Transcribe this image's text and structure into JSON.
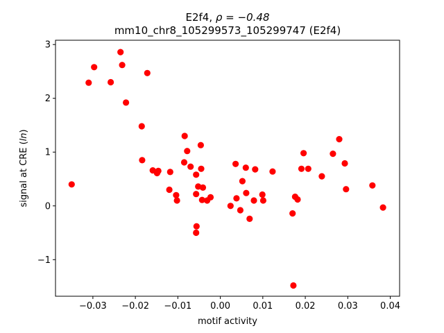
{
  "chart_data": {
    "type": "scatter",
    "title_line1_prefix": "E2f4, ",
    "title_line1_rho": "ρ = −0.48",
    "title_line2": "mm10_chr8_105299573_105299747 (E2f4)",
    "xlabel": "motif activity",
    "ylabel_prefix": "signal at CRE (",
    "ylabel_italic": "ln",
    "ylabel_suffix": ")",
    "xlim": [
      -0.0388,
      0.0422
    ],
    "ylim": [
      -1.68,
      3.08
    ],
    "x_ticks": [
      {
        "value": -0.03,
        "label": "−0.03"
      },
      {
        "value": -0.02,
        "label": "−0.02"
      },
      {
        "value": -0.01,
        "label": "−0.01"
      },
      {
        "value": 0.0,
        "label": "0.00"
      },
      {
        "value": 0.01,
        "label": "0.01"
      },
      {
        "value": 0.02,
        "label": "0.02"
      },
      {
        "value": 0.03,
        "label": "0.03"
      },
      {
        "value": 0.04,
        "label": "0.04"
      }
    ],
    "y_ticks": [
      {
        "value": -1,
        "label": "−1"
      },
      {
        "value": 0,
        "label": "0"
      },
      {
        "value": 1,
        "label": "1"
      },
      {
        "value": 2,
        "label": "2"
      },
      {
        "value": 3,
        "label": "3"
      }
    ],
    "grid": false,
    "marker_color": "#ff0000",
    "points": [
      [
        -0.035,
        0.4
      ],
      [
        -0.031,
        2.29
      ],
      [
        -0.0297,
        2.58
      ],
      [
        -0.0258,
        2.3
      ],
      [
        -0.0235,
        2.86
      ],
      [
        -0.0231,
        2.62
      ],
      [
        -0.0222,
        1.92
      ],
      [
        -0.0185,
        1.48
      ],
      [
        -0.0184,
        0.85
      ],
      [
        -0.0172,
        2.47
      ],
      [
        -0.0159,
        0.66
      ],
      [
        -0.0149,
        0.61
      ],
      [
        -0.0146,
        0.65
      ],
      [
        -0.012,
        0.3
      ],
      [
        -0.0118,
        0.63
      ],
      [
        -0.0104,
        0.2
      ],
      [
        -0.0102,
        0.1
      ],
      [
        -0.0085,
        0.81
      ],
      [
        -0.0084,
        1.3
      ],
      [
        -0.0078,
        1.02
      ],
      [
        -0.007,
        0.73
      ],
      [
        -0.0057,
        0.58
      ],
      [
        -0.0057,
        0.22
      ],
      [
        -0.0056,
        -0.38
      ],
      [
        -0.0057,
        -0.5
      ],
      [
        -0.0052,
        0.36
      ],
      [
        -0.0046,
        1.13
      ],
      [
        -0.0045,
        0.69
      ],
      [
        -0.0043,
        0.11
      ],
      [
        -0.0041,
        0.34
      ],
      [
        -0.0031,
        0.1
      ],
      [
        -0.0023,
        0.16
      ],
      [
        0.0024,
        0.0
      ],
      [
        0.0036,
        0.78
      ],
      [
        0.0038,
        0.14
      ],
      [
        0.0047,
        -0.08
      ],
      [
        0.0052,
        0.46
      ],
      [
        0.006,
        0.71
      ],
      [
        0.0061,
        0.24
      ],
      [
        0.0069,
        -0.24
      ],
      [
        0.0079,
        0.1
      ],
      [
        0.0082,
        0.68
      ],
      [
        0.0099,
        0.21
      ],
      [
        0.0101,
        0.1
      ],
      [
        0.0123,
        0.64
      ],
      [
        0.017,
        -0.14
      ],
      [
        0.0172,
        -1.48
      ],
      [
        0.0176,
        0.17
      ],
      [
        0.0182,
        0.12
      ],
      [
        0.0191,
        0.69
      ],
      [
        0.0196,
        0.98
      ],
      [
        0.0207,
        0.69
      ],
      [
        0.0239,
        0.55
      ],
      [
        0.0265,
        0.97
      ],
      [
        0.028,
        1.24
      ],
      [
        0.0293,
        0.79
      ],
      [
        0.0296,
        0.31
      ],
      [
        0.0358,
        0.38
      ],
      [
        0.0383,
        -0.03
      ]
    ]
  }
}
